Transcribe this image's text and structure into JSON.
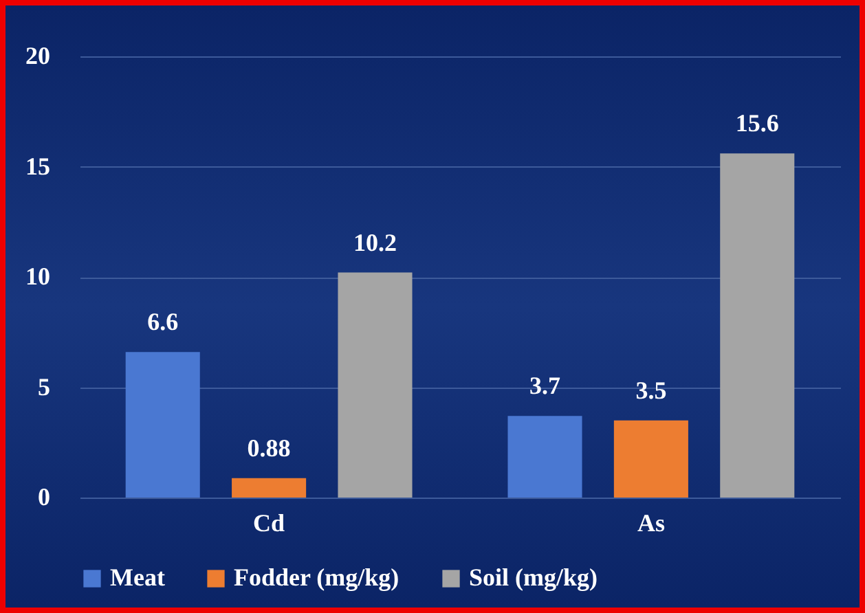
{
  "chart_data": {
    "type": "bar",
    "categories": [
      "Cd",
      "As"
    ],
    "series": [
      {
        "name": "Meat",
        "color": "#4a78d2",
        "values": [
          6.6,
          3.7
        ]
      },
      {
        "name": "Fodder (mg/kg)",
        "color": "#ed7d31",
        "values": [
          0.88,
          3.5
        ]
      },
      {
        "name": "Soil (mg/kg)",
        "color": "#a5a5a5",
        "values": [
          10.2,
          15.6
        ]
      }
    ],
    "ylim": [
      0,
      20
    ],
    "yticks": [
      0,
      5,
      10,
      15,
      20
    ],
    "grid": "y",
    "legend": "bottom",
    "data_labels": true
  }
}
